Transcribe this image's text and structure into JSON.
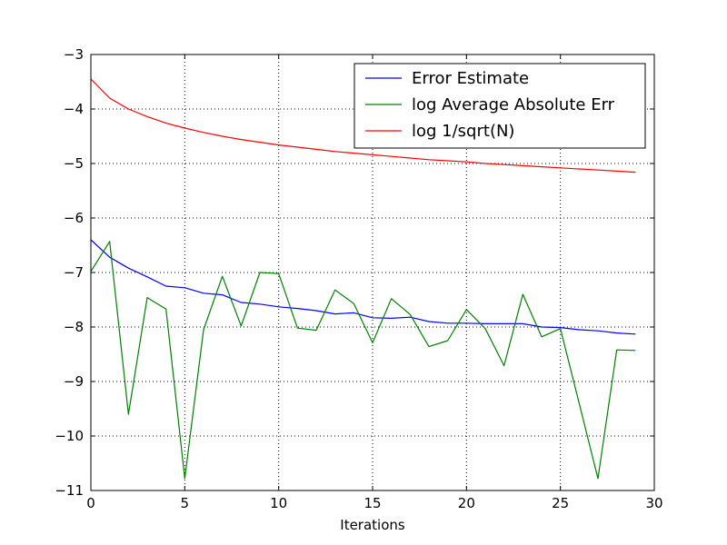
{
  "chart_data": {
    "type": "line",
    "title": "",
    "xlabel": "Iterations",
    "ylabel": "",
    "xlim": [
      0,
      30
    ],
    "ylim": [
      -11,
      -3
    ],
    "xticks": [
      0,
      5,
      10,
      15,
      20,
      25,
      30
    ],
    "yticks": [
      -3,
      -4,
      -5,
      -6,
      -7,
      -8,
      -9,
      -10,
      -11
    ],
    "xtick_labels": [
      "0",
      "5",
      "10",
      "15",
      "20",
      "25",
      "30"
    ],
    "ytick_labels": [
      "−3",
      "−4",
      "−5",
      "−6",
      "−7",
      "−8",
      "−9",
      "−10",
      "−11"
    ],
    "grid": true,
    "legend_position": "top-right",
    "x": [
      0,
      1,
      2,
      3,
      4,
      5,
      6,
      7,
      8,
      9,
      10,
      11,
      12,
      13,
      14,
      15,
      16,
      17,
      18,
      19,
      20,
      21,
      22,
      23,
      24,
      25,
      26,
      27,
      28,
      29
    ],
    "series": [
      {
        "name": "Error Estimate",
        "color": "#0000ff",
        "values": [
          -6.4,
          -6.72,
          -6.92,
          -7.08,
          -7.25,
          -7.28,
          -7.38,
          -7.41,
          -7.55,
          -7.58,
          -7.63,
          -7.66,
          -7.7,
          -7.76,
          -7.74,
          -7.83,
          -7.84,
          -7.82,
          -7.9,
          -7.93,
          -7.93,
          -7.94,
          -7.94,
          -7.94,
          -8.0,
          -8.01,
          -8.05,
          -8.07,
          -8.11,
          -8.13
        ]
      },
      {
        "name": "log Average Absolute Err",
        "color": "#008000",
        "values": [
          -6.98,
          -6.43,
          -9.6,
          -7.46,
          -7.67,
          -10.78,
          -8.05,
          -7.07,
          -7.98,
          -7.0,
          -7.02,
          -8.02,
          -8.06,
          -7.32,
          -7.57,
          -8.29,
          -7.48,
          -7.77,
          -8.36,
          -8.25,
          -7.68,
          -8.03,
          -8.71,
          -7.4,
          -8.18,
          -8.03,
          -9.4,
          -10.78,
          -8.42,
          -8.43
        ]
      },
      {
        "name": "log 1/sqrt(N)",
        "color": "#ff0000",
        "values": [
          -3.45,
          -3.8,
          -4.0,
          -4.14,
          -4.26,
          -4.35,
          -4.43,
          -4.5,
          -4.56,
          -4.61,
          -4.66,
          -4.7,
          -4.74,
          -4.78,
          -4.81,
          -4.84,
          -4.87,
          -4.9,
          -4.93,
          -4.95,
          -4.97,
          -5.0,
          -5.02,
          -5.04,
          -5.06,
          -5.08,
          -5.1,
          -5.12,
          -5.14,
          -5.16
        ]
      }
    ]
  }
}
